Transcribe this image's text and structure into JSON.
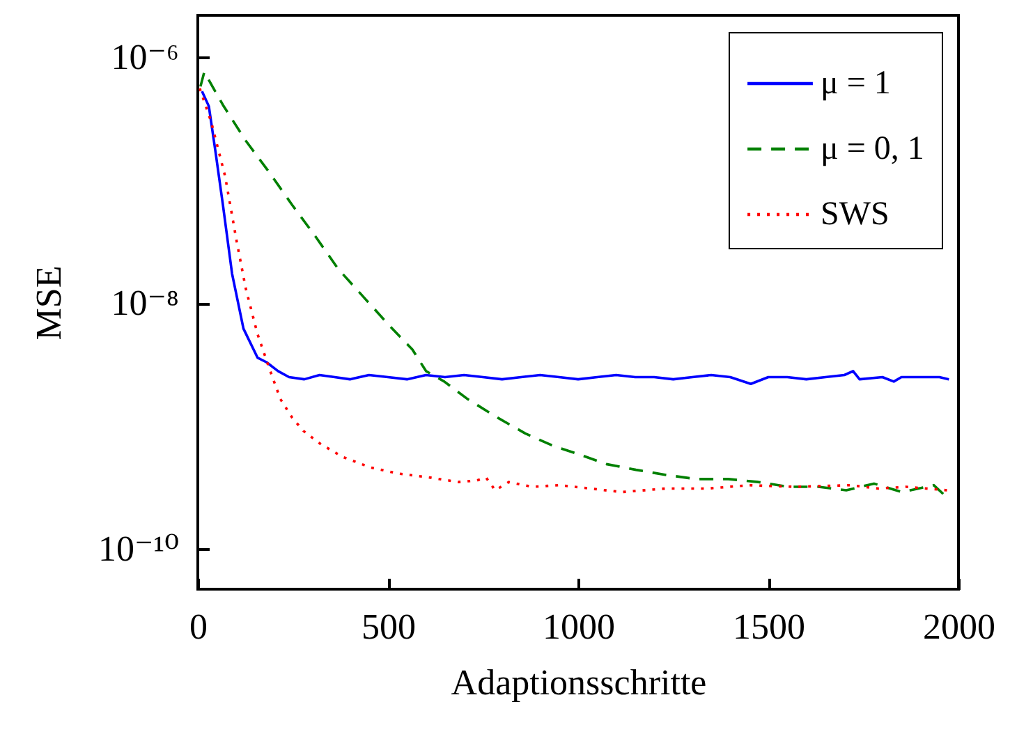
{
  "chart_data": {
    "type": "line",
    "xlabel": "Adaptionsschritte",
    "ylabel": "MSE",
    "log": "y",
    "grid": false,
    "legend": "top right",
    "marker": "none",
    "xlim": [
      0,
      2000
    ],
    "xticks": [
      0,
      500,
      1000,
      1500,
      2000
    ],
    "ylim": [
      4.7e-11,
      2.2e-06
    ],
    "yticks": [
      {
        "value": 1e-06,
        "label": "10⁻⁶"
      },
      {
        "value": 1e-08,
        "label": "10⁻⁸"
      },
      {
        "value": 1e-10,
        "label": "10⁻¹⁰"
      }
    ],
    "series": [
      {
        "name": "μ = 1",
        "color": "#0000ff",
        "line_style": "solid",
        "x": [
          11,
          29,
          47,
          66,
          90,
          120,
          157,
          181,
          211,
          240,
          280,
          320,
          360,
          400,
          450,
          500,
          550,
          600,
          650,
          700,
          750,
          800,
          850,
          900,
          950,
          1000,
          1050,
          1100,
          1150,
          1200,
          1250,
          1300,
          1350,
          1400,
          1454,
          1500,
          1550,
          1600,
          1650,
          1700,
          1723,
          1740,
          1800,
          1830,
          1850,
          1900,
          1950,
          1975
        ],
        "values": [
          5.3e-07,
          4e-07,
          1.66e-07,
          6.3e-08,
          1.74e-08,
          6.2e-09,
          3.6e-09,
          3.3e-09,
          2.8e-09,
          2.5e-09,
          2.4e-09,
          2.6e-09,
          2.5e-09,
          2.4e-09,
          2.6e-09,
          2.5e-09,
          2.4e-09,
          2.6e-09,
          2.5e-09,
          2.6e-09,
          2.5e-09,
          2.4e-09,
          2.5e-09,
          2.6e-09,
          2.5e-09,
          2.4e-09,
          2.5e-09,
          2.6e-09,
          2.5e-09,
          2.5e-09,
          2.4e-09,
          2.5e-09,
          2.6e-09,
          2.5e-09,
          2.2e-09,
          2.5e-09,
          2.5e-09,
          2.4e-09,
          2.5e-09,
          2.6e-09,
          2.8e-09,
          2.4e-09,
          2.5e-09,
          2.3e-09,
          2.5e-09,
          2.5e-09,
          2.5e-09,
          2.4e-09
        ]
      },
      {
        "name": "μ = 0, 1",
        "color": "#008000",
        "line_style": "dashed",
        "x": [
          7,
          17,
          66,
          126,
          187,
          248,
          309,
          369,
          436,
          503,
          564,
          600,
          648,
          709,
          788,
          861,
          934,
          1001,
          1074,
          1152,
          1231,
          1310,
          1395,
          1474,
          1553,
          1632,
          1705,
          1778,
          1851,
          1935,
          1960
        ],
        "values": [
          5.8e-07,
          7.6e-07,
          4.1e-07,
          2.1e-07,
          1.17e-07,
          6.3e-08,
          3.5e-08,
          1.9e-08,
          1.12e-08,
          6.6e-09,
          4.2e-09,
          2.8e-09,
          2.3e-09,
          1.66e-09,
          1.17e-09,
          8.7e-10,
          6.9e-10,
          5.9e-10,
          4.9e-10,
          4.4e-10,
          4e-10,
          3.7e-10,
          3.7e-10,
          3.5e-10,
          3.2e-10,
          3.2e-10,
          3e-10,
          3.4e-10,
          2.9e-10,
          3.3e-10,
          2.8e-10
        ]
      },
      {
        "name": "SWS",
        "color": "#ff0000",
        "line_style": "dotted",
        "x": [
          5,
          35,
          72,
          102,
          126,
          157,
          187,
          217,
          248,
          278,
          321,
          381,
          454,
          527,
          612,
          685,
          733,
          758,
          782,
          818,
          879,
          952,
          1115,
          1231,
          1341,
          1450,
          1570,
          1716,
          1789,
          1862,
          1971
        ],
        "values": [
          5.6e-07,
          3e-07,
          1.07e-07,
          3.2e-08,
          1.32e-08,
          5.6e-09,
          3e-09,
          1.66e-09,
          1.17e-09,
          9.1e-10,
          7.2e-10,
          5.6e-10,
          4.6e-10,
          4.1e-10,
          3.8e-10,
          3.5e-10,
          3.6e-10,
          3.8e-10,
          3e-10,
          3.5e-10,
          3.2e-10,
          3.3e-10,
          2.9e-10,
          3.1e-10,
          3.1e-10,
          3.3e-10,
          3.2e-10,
          3.3e-10,
          3.1e-10,
          3.2e-10,
          3e-10
        ]
      }
    ]
  }
}
